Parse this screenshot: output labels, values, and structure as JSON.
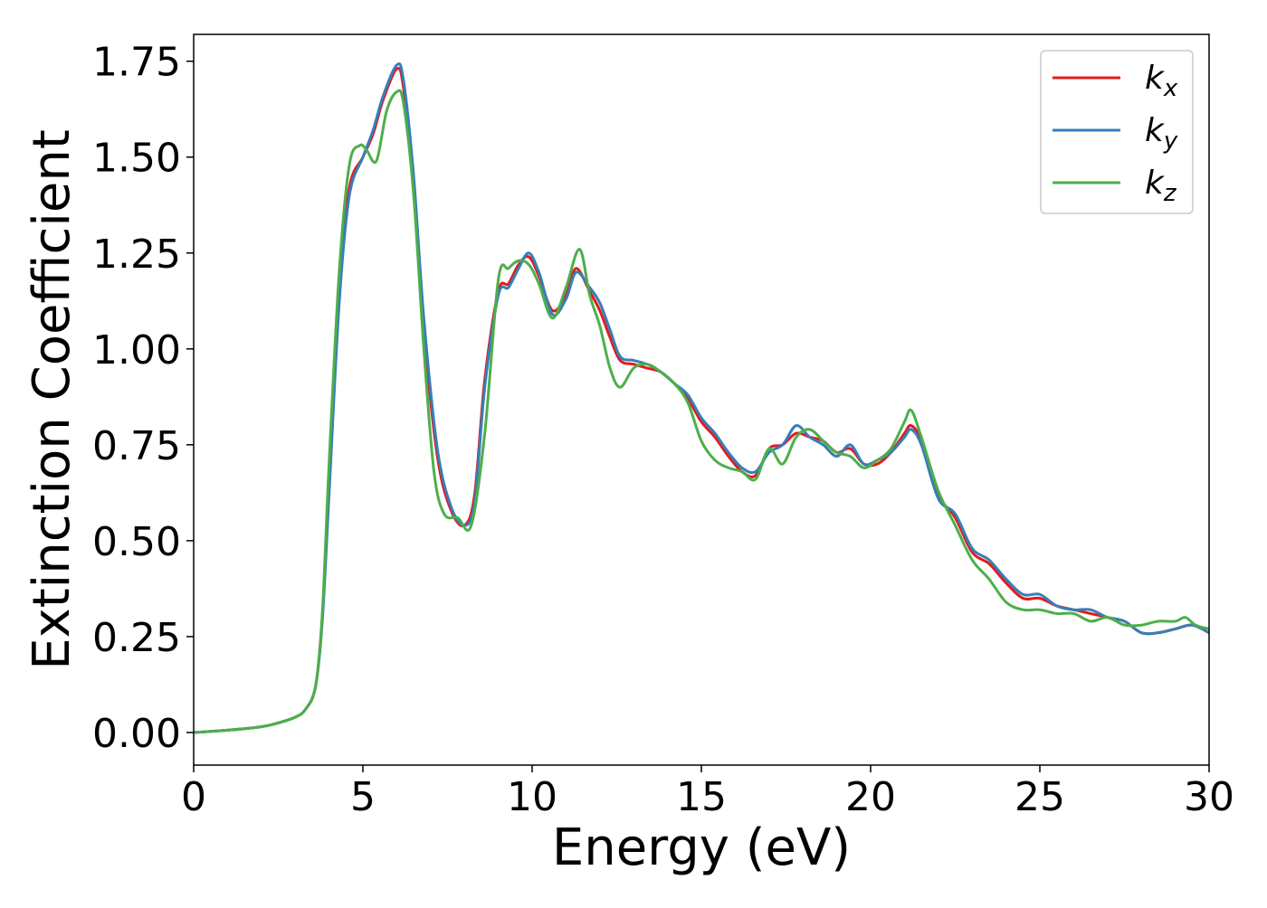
{
  "chart_data": {
    "type": "line",
    "title": "",
    "xlabel": "Energy (eV)",
    "ylabel": "Extinction Coefficient",
    "xlim": [
      0,
      30
    ],
    "ylim": [
      -0.085,
      1.82
    ],
    "xticks": [
      0,
      5,
      10,
      15,
      20,
      25,
      30
    ],
    "xtick_labels": [
      "0",
      "5",
      "10",
      "15",
      "20",
      "25",
      "30"
    ],
    "yticks": [
      0.0,
      0.25,
      0.5,
      0.75,
      1.0,
      1.25,
      1.5,
      1.75
    ],
    "ytick_labels": [
      "0.00",
      "0.25",
      "0.50",
      "0.75",
      "1.00",
      "1.25",
      "1.50",
      "1.75"
    ],
    "grid": false,
    "legend_position": "top-right",
    "series": [
      {
        "name": "k_x",
        "label_main": "k",
        "label_sub": "x",
        "color": "#e41a1c",
        "x": [
          0,
          1,
          2,
          2.5,
          3,
          3.3,
          3.6,
          3.8,
          4.0,
          4.3,
          4.6,
          5.0,
          5.3,
          5.6,
          6.0,
          6.2,
          6.5,
          6.8,
          7.2,
          7.6,
          8.0,
          8.3,
          8.6,
          9.0,
          9.3,
          9.6,
          9.9,
          10.2,
          10.6,
          11.0,
          11.3,
          11.7,
          12.0,
          12.3,
          12.6,
          13.0,
          13.4,
          13.8,
          14.2,
          14.6,
          15.0,
          15.4,
          15.8,
          16.2,
          16.6,
          17.0,
          17.4,
          17.8,
          18.2,
          18.6,
          19.0,
          19.4,
          19.8,
          20.2,
          20.6,
          21.0,
          21.2,
          21.5,
          22.0,
          22.5,
          23.0,
          23.5,
          24.0,
          24.5,
          25.0,
          25.5,
          26.0,
          26.5,
          27.0,
          27.5,
          28.0,
          28.5,
          29.0,
          29.5,
          30.0
        ],
        "y": [
          0.0,
          0.006,
          0.015,
          0.025,
          0.04,
          0.06,
          0.12,
          0.3,
          0.65,
          1.15,
          1.42,
          1.5,
          1.56,
          1.65,
          1.73,
          1.68,
          1.42,
          1.05,
          0.72,
          0.58,
          0.54,
          0.62,
          0.92,
          1.15,
          1.17,
          1.22,
          1.24,
          1.19,
          1.1,
          1.14,
          1.21,
          1.15,
          1.1,
          1.03,
          0.97,
          0.96,
          0.95,
          0.94,
          0.91,
          0.87,
          0.81,
          0.77,
          0.72,
          0.68,
          0.67,
          0.74,
          0.75,
          0.78,
          0.77,
          0.76,
          0.73,
          0.74,
          0.7,
          0.7,
          0.73,
          0.78,
          0.8,
          0.76,
          0.62,
          0.56,
          0.47,
          0.44,
          0.39,
          0.35,
          0.35,
          0.33,
          0.32,
          0.31,
          0.3,
          0.29,
          0.26,
          0.26,
          0.27,
          0.28,
          0.26
        ]
      },
      {
        "name": "k_y",
        "label_main": "k",
        "label_sub": "y",
        "color": "#377eb8",
        "x": [
          0,
          1,
          2,
          2.5,
          3,
          3.3,
          3.6,
          3.8,
          4.0,
          4.3,
          4.6,
          5.0,
          5.3,
          5.6,
          6.0,
          6.2,
          6.5,
          6.8,
          7.2,
          7.6,
          8.0,
          8.3,
          8.6,
          9.0,
          9.3,
          9.6,
          9.9,
          10.2,
          10.6,
          11.0,
          11.3,
          11.7,
          12.0,
          12.3,
          12.6,
          13.0,
          13.4,
          13.8,
          14.2,
          14.6,
          15.0,
          15.4,
          15.8,
          16.2,
          16.6,
          17.0,
          17.4,
          17.8,
          18.2,
          18.6,
          19.0,
          19.4,
          19.8,
          20.2,
          20.6,
          21.0,
          21.2,
          21.5,
          22.0,
          22.5,
          23.0,
          23.5,
          24.0,
          24.5,
          25.0,
          25.5,
          26.0,
          26.5,
          27.0,
          27.5,
          28.0,
          28.5,
          29.0,
          29.5,
          30.0
        ],
        "y": [
          0.0,
          0.006,
          0.015,
          0.025,
          0.04,
          0.06,
          0.12,
          0.29,
          0.62,
          1.12,
          1.4,
          1.5,
          1.57,
          1.66,
          1.74,
          1.7,
          1.45,
          1.08,
          0.74,
          0.59,
          0.54,
          0.6,
          0.9,
          1.14,
          1.16,
          1.21,
          1.25,
          1.2,
          1.09,
          1.13,
          1.2,
          1.16,
          1.12,
          1.05,
          0.98,
          0.97,
          0.96,
          0.94,
          0.91,
          0.88,
          0.82,
          0.78,
          0.73,
          0.69,
          0.68,
          0.73,
          0.75,
          0.8,
          0.77,
          0.75,
          0.72,
          0.75,
          0.7,
          0.71,
          0.73,
          0.77,
          0.79,
          0.75,
          0.61,
          0.57,
          0.48,
          0.45,
          0.4,
          0.36,
          0.36,
          0.33,
          0.32,
          0.32,
          0.3,
          0.29,
          0.26,
          0.26,
          0.27,
          0.28,
          0.26
        ]
      },
      {
        "name": "k_z",
        "label_main": "k",
        "label_sub": "z",
        "color": "#4daf4a",
        "x": [
          0,
          1,
          2,
          2.5,
          3,
          3.3,
          3.6,
          3.8,
          4.0,
          4.3,
          4.6,
          4.9,
          5.1,
          5.4,
          5.7,
          6.0,
          6.2,
          6.5,
          6.8,
          7.1,
          7.4,
          7.8,
          8.2,
          8.6,
          9.0,
          9.3,
          9.6,
          9.9,
          10.2,
          10.6,
          11.0,
          11.4,
          11.7,
          12.0,
          12.3,
          12.6,
          13.0,
          13.4,
          13.8,
          14.2,
          14.6,
          15.0,
          15.4,
          15.8,
          16.2,
          16.6,
          17.0,
          17.4,
          17.8,
          18.2,
          18.6,
          19.0,
          19.4,
          19.8,
          20.2,
          20.6,
          21.0,
          21.2,
          21.5,
          22.0,
          22.5,
          23.0,
          23.5,
          24.0,
          24.5,
          25.0,
          25.5,
          26.0,
          26.5,
          27.0,
          27.5,
          28.0,
          28.5,
          29.0,
          29.3,
          29.6,
          30.0
        ],
        "y": [
          0.0,
          0.006,
          0.015,
          0.025,
          0.04,
          0.06,
          0.12,
          0.31,
          0.7,
          1.2,
          1.48,
          1.53,
          1.52,
          1.49,
          1.62,
          1.67,
          1.64,
          1.4,
          1.0,
          0.68,
          0.57,
          0.56,
          0.54,
          0.78,
          1.18,
          1.21,
          1.23,
          1.22,
          1.17,
          1.08,
          1.16,
          1.26,
          1.14,
          1.06,
          0.95,
          0.9,
          0.95,
          0.96,
          0.94,
          0.91,
          0.86,
          0.76,
          0.71,
          0.69,
          0.68,
          0.66,
          0.74,
          0.7,
          0.77,
          0.79,
          0.76,
          0.73,
          0.72,
          0.69,
          0.71,
          0.74,
          0.81,
          0.84,
          0.77,
          0.63,
          0.54,
          0.45,
          0.4,
          0.34,
          0.32,
          0.32,
          0.31,
          0.31,
          0.29,
          0.3,
          0.28,
          0.28,
          0.29,
          0.29,
          0.3,
          0.28,
          0.27
        ]
      }
    ]
  }
}
